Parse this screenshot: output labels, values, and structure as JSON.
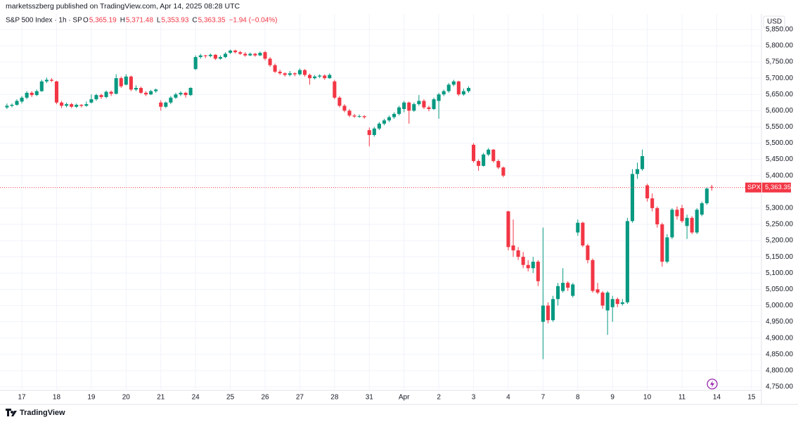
{
  "header": {
    "publisher": "marketsszberg published on TradingView.com, Apr 14, 2025 08:28 UTC",
    "brand": "TradingView"
  },
  "chart_data": {
    "type": "candlestick",
    "title": "S&P 500 Index · 1h · SP",
    "ohlc_legend": [
      {
        "label": "O",
        "value": "5,365.19"
      },
      {
        "label": "H",
        "value": "5,371.48"
      },
      {
        "label": "L",
        "value": "5,353.93"
      },
      {
        "label": "C",
        "value": "5,363.35"
      }
    ],
    "change": "−1.94 (−0.04%)",
    "currency": "USD",
    "last_price_tag": {
      "symbol": "SPX",
      "value": 5363.35,
      "label": "5,363.35"
    },
    "up_color": "#089981",
    "down_color": "#f23645",
    "grid": true,
    "xlim": [
      -1.4,
      152
    ],
    "xticks": [
      {
        "value": 3,
        "label": "17"
      },
      {
        "value": 10,
        "label": "18"
      },
      {
        "value": 17,
        "label": "19"
      },
      {
        "value": 24,
        "label": "20"
      },
      {
        "value": 31,
        "label": "21"
      },
      {
        "value": 38,
        "label": "24"
      },
      {
        "value": 45,
        "label": "25"
      },
      {
        "value": 52,
        "label": "26"
      },
      {
        "value": 59,
        "label": "27"
      },
      {
        "value": 66,
        "label": "28"
      },
      {
        "value": 73,
        "label": "31"
      },
      {
        "value": 80,
        "label": "Apr"
      },
      {
        "value": 87,
        "label": "2"
      },
      {
        "value": 94,
        "label": "3"
      },
      {
        "value": 101,
        "label": "4"
      },
      {
        "value": 108,
        "label": "7"
      },
      {
        "value": 115,
        "label": "8"
      },
      {
        "value": 122,
        "label": "9"
      },
      {
        "value": 129,
        "label": "10"
      },
      {
        "value": 136,
        "label": "11"
      },
      {
        "value": 143,
        "label": "14"
      },
      {
        "value": 150,
        "label": "15"
      }
    ],
    "ylim": [
      4739,
      5893
    ],
    "yticks": [
      {
        "value": 4750,
        "label": "4,750.00"
      },
      {
        "value": 4800,
        "label": "4,800.00"
      },
      {
        "value": 4850,
        "label": "4,850.00"
      },
      {
        "value": 4900,
        "label": "4,900.00"
      },
      {
        "value": 4950,
        "label": "4,950.00"
      },
      {
        "value": 5000,
        "label": "5,000.00"
      },
      {
        "value": 5050,
        "label": "5,050.00"
      },
      {
        "value": 5100,
        "label": "5,100.00"
      },
      {
        "value": 5150,
        "label": "5,150.00"
      },
      {
        "value": 5200,
        "label": "5,200.00"
      },
      {
        "value": 5250,
        "label": "5,250.00"
      },
      {
        "value": 5300,
        "label": "5,300.00"
      },
      {
        "value": 5400,
        "label": "5,400.00"
      },
      {
        "value": 5450,
        "label": "5,450.00"
      },
      {
        "value": 5500,
        "label": "5,500.00"
      },
      {
        "value": 5550,
        "label": "5,550.00"
      },
      {
        "value": 5600,
        "label": "5,600.00"
      },
      {
        "value": 5650,
        "label": "5,650.00"
      },
      {
        "value": 5700,
        "label": "5,700.00"
      },
      {
        "value": 5750,
        "label": "5,750.00"
      },
      {
        "value": 5800,
        "label": "5,800.00"
      },
      {
        "value": 5850,
        "label": "5,850.00"
      }
    ],
    "ohlc": [
      [
        5610,
        5622,
        5605,
        5615
      ],
      [
        5615,
        5622,
        5610,
        5618
      ],
      [
        5618,
        5635,
        5615,
        5630
      ],
      [
        5628,
        5645,
        5622,
        5640
      ],
      [
        5640,
        5660,
        5635,
        5655
      ],
      [
        5655,
        5660,
        5642,
        5648
      ],
      [
        5648,
        5665,
        5645,
        5660
      ],
      [
        5660,
        5695,
        5658,
        5690
      ],
      [
        5690,
        5702,
        5685,
        5695
      ],
      [
        5695,
        5700,
        5688,
        5692
      ],
      [
        5690,
        5692,
        5620,
        5625
      ],
      [
        5625,
        5630,
        5608,
        5615
      ],
      [
        5615,
        5625,
        5610,
        5620
      ],
      [
        5620,
        5624,
        5608,
        5612
      ],
      [
        5612,
        5622,
        5608,
        5618
      ],
      [
        5618,
        5620,
        5610,
        5615
      ],
      [
        5615,
        5628,
        5612,
        5620
      ],
      [
        5625,
        5650,
        5622,
        5635
      ],
      [
        5635,
        5652,
        5630,
        5648
      ],
      [
        5648,
        5652,
        5636,
        5642
      ],
      [
        5642,
        5662,
        5638,
        5658
      ],
      [
        5658,
        5662,
        5645,
        5652
      ],
      [
        5652,
        5712,
        5650,
        5700
      ],
      [
        5700,
        5705,
        5670,
        5675
      ],
      [
        5680,
        5712,
        5678,
        5705
      ],
      [
        5705,
        5708,
        5660,
        5665
      ],
      [
        5665,
        5678,
        5660,
        5670
      ],
      [
        5670,
        5674,
        5652,
        5655
      ],
      [
        5655,
        5660,
        5645,
        5650
      ],
      [
        5650,
        5664,
        5648,
        5660
      ],
      [
        5660,
        5668,
        5655,
        5665
      ],
      [
        5625,
        5632,
        5600,
        5612
      ],
      [
        5612,
        5628,
        5608,
        5625
      ],
      [
        5625,
        5645,
        5620,
        5640
      ],
      [
        5640,
        5655,
        5636,
        5650
      ],
      [
        5650,
        5660,
        5645,
        5655
      ],
      [
        5655,
        5658,
        5640,
        5648
      ],
      [
        5648,
        5672,
        5645,
        5670
      ],
      [
        5728,
        5770,
        5725,
        5765
      ],
      [
        5765,
        5775,
        5760,
        5770
      ],
      [
        5770,
        5772,
        5762,
        5768
      ],
      [
        5768,
        5776,
        5764,
        5772
      ],
      [
        5772,
        5774,
        5756,
        5760
      ],
      [
        5760,
        5770,
        5757,
        5765
      ],
      [
        5765,
        5780,
        5762,
        5775
      ],
      [
        5778,
        5788,
        5774,
        5785
      ],
      [
        5785,
        5788,
        5776,
        5780
      ],
      [
        5780,
        5784,
        5772,
        5775
      ],
      [
        5775,
        5780,
        5766,
        5770
      ],
      [
        5770,
        5779,
        5768,
        5775
      ],
      [
        5775,
        5778,
        5766,
        5770
      ],
      [
        5770,
        5782,
        5768,
        5778
      ],
      [
        5780,
        5784,
        5755,
        5760
      ],
      [
        5760,
        5765,
        5735,
        5740
      ],
      [
        5740,
        5745,
        5716,
        5720
      ],
      [
        5720,
        5726,
        5710,
        5715
      ],
      [
        5715,
        5718,
        5705,
        5710
      ],
      [
        5710,
        5722,
        5706,
        5715
      ],
      [
        5715,
        5718,
        5706,
        5712
      ],
      [
        5712,
        5730,
        5708,
        5725
      ],
      [
        5725,
        5728,
        5705,
        5710
      ],
      [
        5710,
        5714,
        5680,
        5700
      ],
      [
        5700,
        5710,
        5696,
        5705
      ],
      [
        5705,
        5712,
        5700,
        5708
      ],
      [
        5708,
        5712,
        5695,
        5700
      ],
      [
        5700,
        5715,
        5698,
        5710
      ],
      [
        5690,
        5695,
        5635,
        5640
      ],
      [
        5640,
        5645,
        5610,
        5615
      ],
      [
        5615,
        5620,
        5595,
        5600
      ],
      [
        5600,
        5605,
        5580,
        5585
      ],
      [
        5585,
        5590,
        5578,
        5582
      ],
      [
        5582,
        5588,
        5578,
        5583
      ],
      [
        5583,
        5586,
        5575,
        5580
      ],
      [
        5540,
        5548,
        5490,
        5525
      ],
      [
        5525,
        5550,
        5520,
        5545
      ],
      [
        5545,
        5565,
        5540,
        5560
      ],
      [
        5560,
        5575,
        5555,
        5570
      ],
      [
        5570,
        5585,
        5565,
        5580
      ],
      [
        5580,
        5595,
        5575,
        5590
      ],
      [
        5590,
        5615,
        5585,
        5610
      ],
      [
        5605,
        5630,
        5595,
        5625
      ],
      [
        5625,
        5628,
        5560,
        5600
      ],
      [
        5600,
        5625,
        5596,
        5620
      ],
      [
        5620,
        5648,
        5615,
        5630
      ],
      [
        5630,
        5635,
        5605,
        5610
      ],
      [
        5610,
        5615,
        5598,
        5605
      ],
      [
        5605,
        5640,
        5602,
        5635
      ],
      [
        5630,
        5655,
        5575,
        5650
      ],
      [
        5650,
        5665,
        5645,
        5660
      ],
      [
        5660,
        5685,
        5655,
        5680
      ],
      [
        5680,
        5695,
        5675,
        5690
      ],
      [
        5690,
        5692,
        5645,
        5650
      ],
      [
        5650,
        5668,
        5646,
        5660
      ],
      [
        5660,
        5675,
        5655,
        5670
      ],
      [
        5495,
        5500,
        5440,
        5445
      ],
      [
        5445,
        5450,
        5415,
        5430
      ],
      [
        5430,
        5470,
        5428,
        5465
      ],
      [
        5465,
        5485,
        5460,
        5480
      ],
      [
        5480,
        5482,
        5440,
        5445
      ],
      [
        5445,
        5450,
        5420,
        5425
      ],
      [
        5425,
        5428,
        5395,
        5400
      ],
      [
        5290,
        5292,
        5170,
        5180
      ],
      [
        5185,
        5265,
        5150,
        5170
      ],
      [
        5170,
        5180,
        5140,
        5150
      ],
      [
        5150,
        5165,
        5115,
        5125
      ],
      [
        5125,
        5140,
        5105,
        5115
      ],
      [
        5115,
        5150,
        5100,
        5135
      ],
      [
        5135,
        5140,
        5060,
        5075
      ],
      [
        4950,
        5240,
        4835,
        5000
      ],
      [
        5000,
        5010,
        4945,
        4955
      ],
      [
        4955,
        5030,
        4950,
        5020
      ],
      [
        5020,
        5070,
        5000,
        5060
      ],
      [
        5045,
        5115,
        5040,
        5070
      ],
      [
        5070,
        5075,
        5045,
        5055
      ],
      [
        5030,
        5070,
        5025,
        5065
      ],
      [
        5225,
        5265,
        5215,
        5255
      ],
      [
        5255,
        5258,
        5180,
        5185
      ],
      [
        5185,
        5190,
        5130,
        5140
      ],
      [
        5140,
        5145,
        5040,
        5045
      ],
      [
        5050,
        5070,
        5035,
        5040
      ],
      [
        5040,
        5045,
        4990,
        5000
      ],
      [
        4985,
        5045,
        4910,
        5040
      ],
      [
        4995,
        5030,
        4950,
        5020
      ],
      [
        5020,
        5025,
        4995,
        5005
      ],
      [
        5005,
        5020,
        5000,
        5010
      ],
      [
        5010,
        5270,
        5005,
        5260
      ],
      [
        5260,
        5420,
        5255,
        5405
      ],
      [
        5405,
        5440,
        5390,
        5420
      ],
      [
        5420,
        5480,
        5415,
        5460
      ],
      [
        5370,
        5375,
        5320,
        5330
      ],
      [
        5330,
        5345,
        5290,
        5300
      ],
      [
        5300,
        5305,
        5240,
        5250
      ],
      [
        5250,
        5255,
        5120,
        5135
      ],
      [
        5135,
        5220,
        5130,
        5210
      ],
      [
        5210,
        5300,
        5205,
        5295
      ],
      [
        5295,
        5305,
        5265,
        5275
      ],
      [
        5300,
        5310,
        5255,
        5260
      ],
      [
        5245,
        5280,
        5205,
        5270
      ],
      [
        5270,
        5275,
        5220,
        5225
      ],
      [
        5225,
        5300,
        5220,
        5295
      ],
      [
        5280,
        5320,
        5275,
        5315
      ],
      [
        5315,
        5365,
        5310,
        5360
      ],
      [
        5365.19,
        5371.48,
        5353.93,
        5363.35
      ]
    ]
  }
}
